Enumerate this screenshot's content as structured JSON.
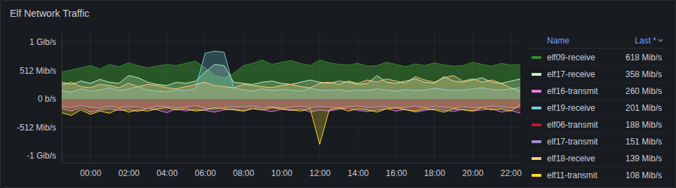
{
  "chart_data": {
    "type": "line",
    "title": "Elf Network Traffic",
    "x": [
      -1.5,
      -1,
      -0.5,
      0,
      0.5,
      1,
      1.5,
      2,
      2.5,
      3,
      3.5,
      4,
      4.5,
      5,
      5.5,
      6,
      6.5,
      7,
      7.5,
      8,
      8.5,
      9,
      9.5,
      10,
      10.5,
      11,
      11.5,
      12,
      12.5,
      13,
      13.5,
      14,
      14.5,
      15,
      15.5,
      16,
      16.5,
      17,
      17.5,
      18,
      18.5,
      19,
      19.5,
      20,
      20.5,
      21,
      21.5,
      22,
      22.5
    ],
    "xlim": [
      -1.5,
      22.5
    ],
    "xticks": [
      {
        "value": 0,
        "label": "00:00"
      },
      {
        "value": 2,
        "label": "02:00"
      },
      {
        "value": 4,
        "label": "04:00"
      },
      {
        "value": 6,
        "label": "06:00"
      },
      {
        "value": 8,
        "label": "08:00"
      },
      {
        "value": 10,
        "label": "10:00"
      },
      {
        "value": 12,
        "label": "12:00"
      },
      {
        "value": 14,
        "label": "14:00"
      },
      {
        "value": 16,
        "label": "16:00"
      },
      {
        "value": 18,
        "label": "18:00"
      },
      {
        "value": 20,
        "label": "20:00"
      },
      {
        "value": 22,
        "label": "22:00"
      }
    ],
    "ylim": [
      -1152,
      1200
    ],
    "yticks": [
      {
        "value": 1024,
        "label": "1 Gib/s"
      },
      {
        "value": 512,
        "label": "512 Mib/s"
      },
      {
        "value": 0,
        "label": "0 b/s"
      },
      {
        "value": -512,
        "label": "-512 Mib/s"
      },
      {
        "value": -1024,
        "label": "-1 Gib/s"
      }
    ],
    "grid": true,
    "legend": "right",
    "legend_header": [
      "Name",
      "Last *"
    ],
    "series": [
      {
        "name": "elf09-receive",
        "color": "#37872d",
        "last_label": "618 Mib/s",
        "values": [
          480,
          520,
          560,
          600,
          540,
          620,
          580,
          650,
          600,
          560,
          590,
          620,
          600,
          640,
          680,
          560,
          420,
          380,
          460,
          600,
          640,
          700,
          620,
          660,
          690,
          640,
          600,
          700,
          650,
          620,
          610,
          640,
          590,
          600,
          660,
          620,
          580,
          630,
          600,
          650,
          610,
          590,
          600,
          660,
          620,
          590,
          640,
          610,
          618
        ]
      },
      {
        "name": "elf17-receive",
        "color": "#c8f2c2",
        "last_label": "358 Mib/s",
        "values": [
          300,
          260,
          320,
          280,
          350,
          300,
          280,
          420,
          380,
          300,
          260,
          240,
          300,
          280,
          320,
          480,
          620,
          600,
          300,
          280,
          260,
          300,
          320,
          280,
          260,
          300,
          340,
          300,
          280,
          320,
          300,
          260,
          280,
          420,
          300,
          280,
          320,
          360,
          300,
          280,
          400,
          320,
          300,
          340,
          380,
          300,
          280,
          320,
          358
        ]
      },
      {
        "name": "elf16-transmit",
        "color": "#e07ee0",
        "last_label": "260 Mib/s",
        "values": [
          -180,
          -220,
          -160,
          -240,
          -200,
          -180,
          -210,
          -190,
          -230,
          -170,
          -200,
          -250,
          -180,
          -220,
          -190,
          -210,
          -240,
          -200,
          -180,
          -220,
          -160,
          -200,
          -230,
          -190,
          -210,
          -180,
          -240,
          -200,
          -220,
          -190,
          -170,
          -210,
          -230,
          -200,
          -180,
          -220,
          -190,
          -240,
          -210,
          -180,
          -200,
          -230,
          -190,
          -220,
          -200,
          -180,
          -240,
          -210,
          -260
        ]
      },
      {
        "name": "elf19-receive",
        "color": "#6ed0e0",
        "last_label": "201 Mib/s",
        "values": [
          150,
          120,
          180,
          140,
          160,
          200,
          150,
          180,
          220,
          160,
          140,
          130,
          160,
          150,
          180,
          820,
          860,
          840,
          200,
          160,
          140,
          180,
          150,
          170,
          160,
          140,
          190,
          160,
          150,
          170,
          140,
          160,
          150,
          180,
          160,
          140,
          170,
          150,
          160,
          190,
          170,
          150,
          160,
          180,
          200,
          170,
          160,
          180,
          201
        ]
      },
      {
        "name": "elf06-transmit",
        "color": "#c4162a",
        "last_label": "188 Mib/s",
        "values": [
          -120,
          -150,
          -100,
          -180,
          -140,
          -160,
          -130,
          -170,
          -120,
          -150,
          -140,
          -110,
          -160,
          -130,
          -150,
          -140,
          -120,
          -170,
          -130,
          -150,
          -160,
          -120,
          -140,
          -180,
          -130,
          -150,
          -120,
          -160,
          -140,
          -130,
          -170,
          -150,
          -120,
          -140,
          -160,
          -130,
          -150,
          -180,
          -140,
          -120,
          -160,
          -150,
          -130,
          -170,
          -140,
          -150,
          -160,
          -130,
          -188
        ]
      },
      {
        "name": "elf17-transmit",
        "color": "#a28ad8",
        "last_label": "151 Mib/s",
        "values": [
          -140,
          -160,
          -120,
          -150,
          -170,
          -130,
          -160,
          -140,
          -150,
          -180,
          -130,
          -140,
          -160,
          -150,
          -120,
          -170,
          -190,
          -160,
          -140,
          -150,
          -130,
          -160,
          -140,
          -170,
          -150,
          -130,
          -160,
          -140,
          -150,
          -170,
          -140,
          -130,
          -160,
          -150,
          -140,
          -170,
          -150,
          -130,
          -160,
          -140,
          -150,
          -170,
          -140,
          -160,
          -150,
          -130,
          -140,
          -160,
          -151
        ]
      },
      {
        "name": "elf18-receive",
        "color": "#ffcb7d",
        "last_label": "139 Mib/s",
        "values": [
          250,
          300,
          220,
          200,
          260,
          240,
          200,
          280,
          220,
          260,
          240,
          200,
          180,
          220,
          260,
          300,
          240,
          220,
          200,
          260,
          240,
          220,
          200,
          240,
          260,
          220,
          200,
          280,
          300,
          260,
          320,
          280,
          340,
          300,
          360,
          320,
          280,
          400,
          340,
          300,
          380,
          420,
          320,
          360,
          300,
          340,
          280,
          200,
          139
        ]
      },
      {
        "name": "elf11-transmit",
        "color": "#fade2a",
        "last_label": "108 Mib/s",
        "values": [
          -250,
          -300,
          -200,
          -280,
          -220,
          -260,
          -180,
          -240,
          -200,
          -220,
          -180,
          -160,
          -200,
          -180,
          -220,
          -200,
          -160,
          -180,
          -200,
          -220,
          -180,
          -200,
          -160,
          -180,
          -200,
          -220,
          -180,
          -820,
          -200,
          -160,
          -220,
          -180,
          -200,
          -240,
          -180,
          -160,
          -200,
          -220,
          -180,
          -200,
          -240,
          -180,
          -200,
          -220,
          -160,
          -200,
          -180,
          -220,
          -108
        ]
      }
    ]
  }
}
